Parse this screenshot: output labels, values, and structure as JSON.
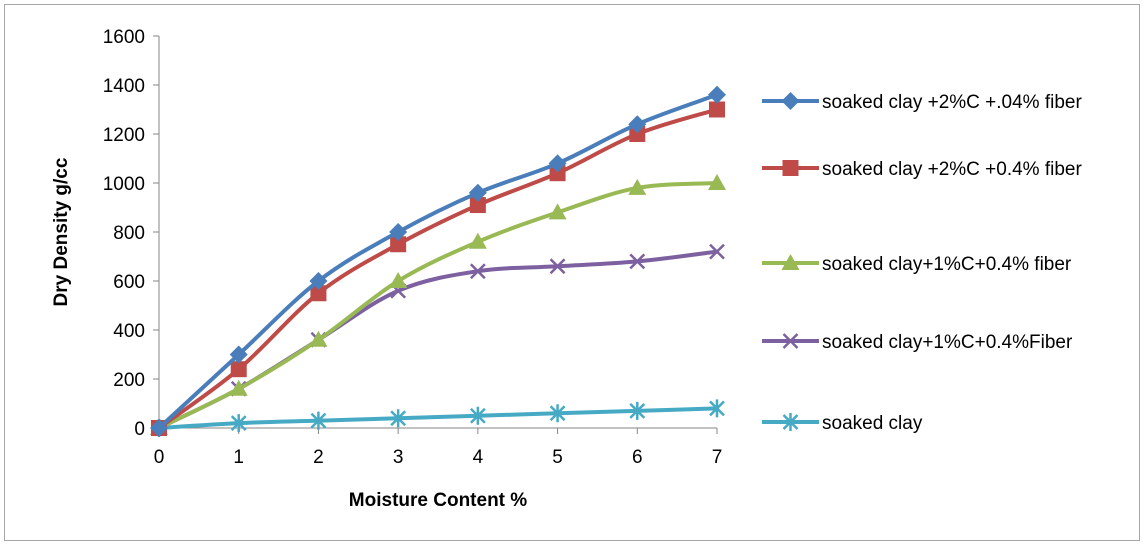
{
  "chart_data": {
    "type": "line",
    "title": "",
    "xlabel": "Moisture Content %",
    "ylabel": "Dry Density g/cc",
    "x": [
      0,
      1,
      2,
      3,
      4,
      5,
      6,
      7
    ],
    "xlim": [
      0,
      7
    ],
    "ylim": [
      0,
      1600
    ],
    "yticks": [
      0,
      200,
      400,
      600,
      800,
      1000,
      1200,
      1400,
      1600
    ],
    "grid": false,
    "legend_position": "right",
    "series": [
      {
        "name": "soaked clay +2%C +.04% fiber",
        "color": "#4a7ebb",
        "marker": "diamond",
        "values": [
          0,
          300,
          600,
          800,
          960,
          1080,
          1240,
          1360
        ]
      },
      {
        "name": "soaked clay +2%C +0.4% fiber",
        "color": "#be4b48",
        "marker": "square",
        "values": [
          0,
          240,
          550,
          750,
          910,
          1040,
          1200,
          1300
        ]
      },
      {
        "name": "soaked clay+1%C+0.4% fiber",
        "color": "#98b954",
        "marker": "triangle",
        "values": [
          0,
          160,
          360,
          600,
          760,
          880,
          980,
          1000
        ]
      },
      {
        "name": "soaked clay+1%C+0.4%Fiber",
        "color": "#7d60a0",
        "marker": "x",
        "values": [
          0,
          160,
          360,
          560,
          640,
          660,
          680,
          720
        ]
      },
      {
        "name": "soaked clay",
        "color": "#46aac5",
        "marker": "asterisk",
        "values": [
          0,
          20,
          30,
          40,
          50,
          60,
          70,
          80
        ]
      }
    ]
  }
}
